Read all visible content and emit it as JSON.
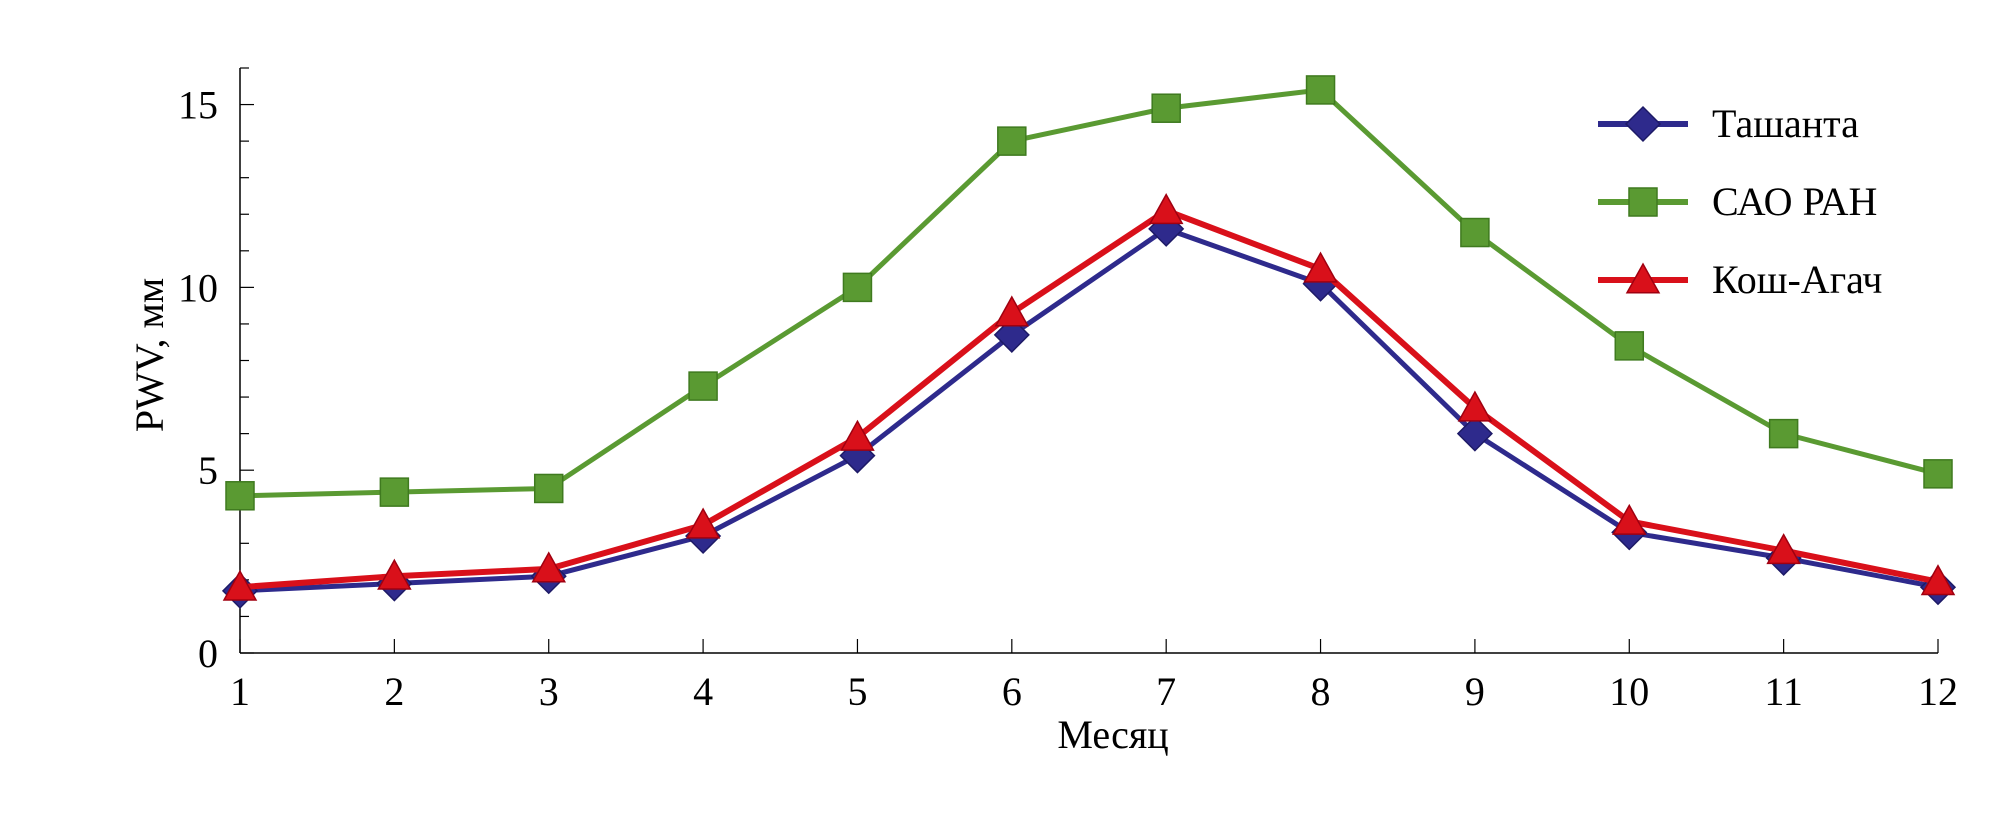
{
  "chart_data": {
    "type": "line",
    "title": "",
    "xlabel": "Месяц",
    "ylabel": "PWV, мм",
    "x": [
      1,
      2,
      3,
      4,
      5,
      6,
      7,
      8,
      9,
      10,
      11,
      12
    ],
    "xlim": [
      1,
      12
    ],
    "ylim": [
      0,
      16
    ],
    "yticks": [
      0,
      5,
      10,
      15
    ],
    "grid": false,
    "legend_position": "top-right",
    "series": [
      {
        "name": "Ташанта",
        "marker": "diamond",
        "color": "#2e2a8c",
        "values": [
          1.7,
          1.9,
          2.1,
          3.2,
          5.4,
          8.7,
          11.6,
          10.1,
          6.0,
          3.3,
          2.6,
          1.8
        ]
      },
      {
        "name": "САО РАН",
        "marker": "square",
        "color": "#5a9a32",
        "values": [
          4.3,
          4.4,
          4.5,
          7.3,
          10.0,
          14.0,
          14.9,
          15.4,
          11.5,
          8.4,
          6.0,
          4.9
        ]
      },
      {
        "name": "Кош-Агач",
        "marker": "triangle",
        "color": "#d9101a",
        "values": [
          1.8,
          2.1,
          2.3,
          3.5,
          5.9,
          9.3,
          12.1,
          10.5,
          6.7,
          3.6,
          2.8,
          1.95
        ]
      }
    ]
  }
}
